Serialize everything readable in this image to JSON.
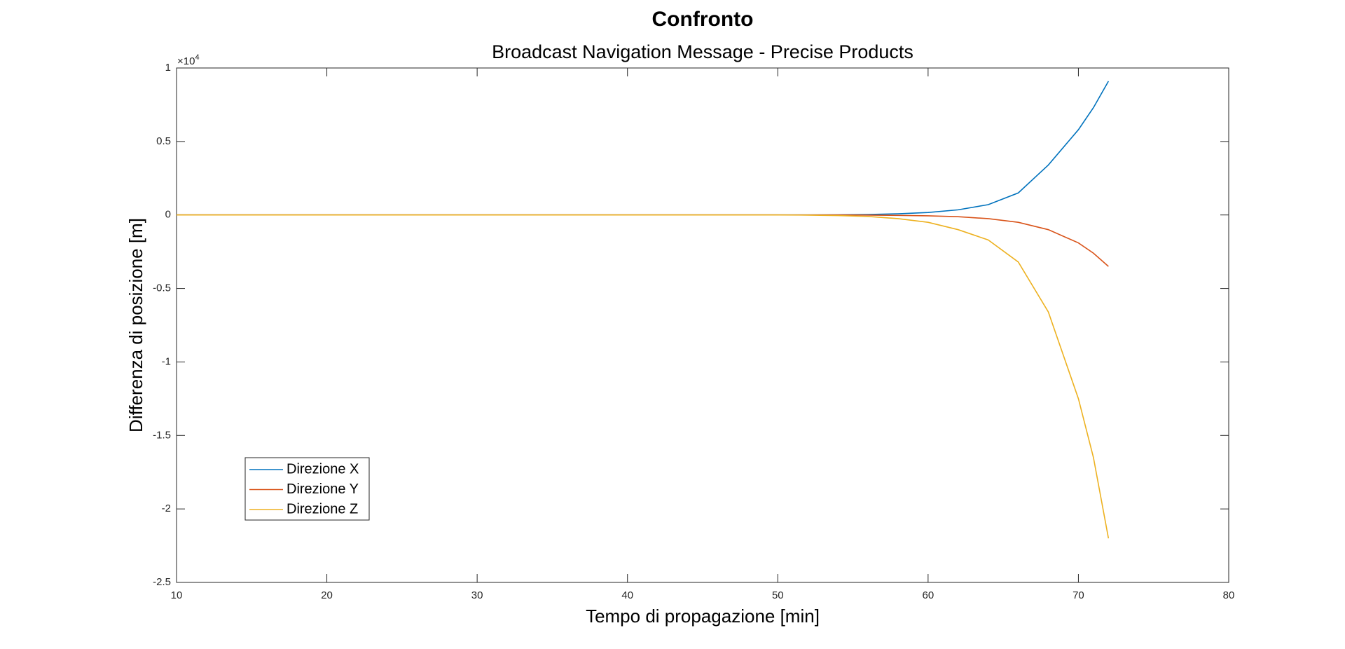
{
  "chart_data": {
    "type": "line",
    "title": "Confronto",
    "subtitle": "Broadcast Navigation Message - Precise Products",
    "x_label": "Tempo di propagazione [min]",
    "y_label": "Differenza di posizione [m]",
    "y_multiplier": {
      "base": "×10",
      "exponent": "4"
    },
    "x": [
      10,
      20,
      30,
      40,
      50,
      52,
      54,
      56,
      58,
      60,
      62,
      64,
      66,
      68,
      70,
      71,
      72
    ],
    "series": [
      {
        "name": "Direzione X",
        "color": "#0072bd",
        "values": [
          0,
          0,
          0,
          0,
          0,
          0,
          0.001,
          0.003,
          0.008,
          0.017,
          0.035,
          0.07,
          0.15,
          0.34,
          0.58,
          0.73,
          0.91
        ]
      },
      {
        "name": "Direzione Y",
        "color": "#d95319",
        "values": [
          0,
          0,
          0,
          0,
          0,
          0,
          0,
          -0.001,
          -0.003,
          -0.006,
          -0.012,
          -0.025,
          -0.05,
          -0.1,
          -0.19,
          -0.26,
          -0.35
        ]
      },
      {
        "name": "Direzione Z",
        "color": "#edb120",
        "values": [
          0,
          0,
          0,
          0,
          0,
          -0.001,
          -0.004,
          -0.01,
          -0.025,
          -0.05,
          -0.1,
          -0.17,
          -0.32,
          -0.66,
          -1.25,
          -1.65,
          -2.2
        ]
      }
    ],
    "xlim": [
      10,
      80
    ],
    "ylim": [
      -2.5,
      1
    ],
    "xticks": [
      10,
      20,
      30,
      40,
      50,
      60,
      70,
      80
    ],
    "yticks": [
      -2.5,
      -2,
      -1.5,
      -1,
      -0.5,
      0,
      0.5,
      1
    ],
    "grid": false,
    "legend": "lower-left"
  }
}
